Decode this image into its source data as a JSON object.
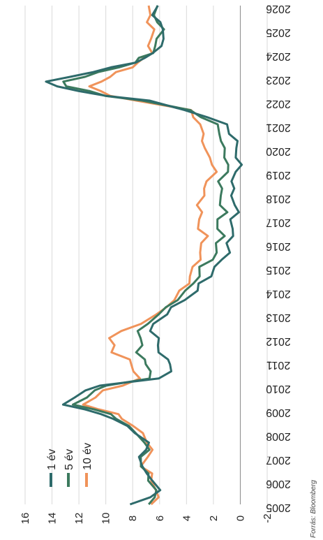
{
  "chart_data": {
    "type": "line",
    "orientation": "rotated-90",
    "title": "",
    "xlabel": "",
    "ylabel": "",
    "ylim": [
      -2,
      16
    ],
    "yticks": [
      "-2",
      "0",
      "2",
      "4",
      "6",
      "8",
      "10",
      "12",
      "14",
      "16"
    ],
    "xlim": [
      2005,
      2026
    ],
    "xticks": [
      "2005",
      "2006",
      "2007",
      "2008",
      "2009",
      "2010",
      "2011",
      "2012",
      "2013",
      "2014",
      "2015",
      "2016",
      "2017",
      "2018",
      "2019",
      "2020",
      "2021",
      "2022",
      "2023",
      "2024",
      "2025",
      "2026"
    ],
    "grid": true,
    "legend_position": "inside-lower-left",
    "source_note": "Forrás: Bloomberg",
    "series": [
      {
        "name": "1 év",
        "color": "#2e6b6b",
        "x": [
          2005.0,
          2005.3,
          2005.6,
          2006.0,
          2006.3,
          2006.6,
          2007.0,
          2007.3,
          2007.6,
          2008.0,
          2008.3,
          2008.6,
          2008.8,
          2009.0,
          2009.2,
          2009.5,
          2009.8,
          2010.0,
          2010.3,
          2010.6,
          2010.9,
          2011.1,
          2011.4,
          2011.7,
          2012.0,
          2012.3,
          2012.6,
          2013.0,
          2013.3,
          2013.6,
          2014.0,
          2014.3,
          2014.6,
          2015.0,
          2015.3,
          2015.6,
          2016.0,
          2016.3,
          2016.6,
          2017.0,
          2017.3,
          2017.6,
          2018.0,
          2018.3,
          2018.6,
          2019.0,
          2019.3,
          2019.6,
          2020.0,
          2020.3,
          2020.6,
          2021.0,
          2021.3,
          2021.6,
          2022.0,
          2022.2,
          2022.4,
          2022.6,
          2022.8,
          2023.0,
          2023.2,
          2023.4,
          2023.6,
          2023.8,
          2024.0,
          2024.3,
          2024.6,
          2025.0,
          2025.3,
          2025.6,
          2026.0
        ],
        "values": [
          8.2,
          6.5,
          6.2,
          6.4,
          6.9,
          7.5,
          7.3,
          7.1,
          6.9,
          7.6,
          8.6,
          9.4,
          10.2,
          11.8,
          13.0,
          12.3,
          11.7,
          10.2,
          6.2,
          5.2,
          5.0,
          5.6,
          6.0,
          6.0,
          6.3,
          6.5,
          6.5,
          5.6,
          4.9,
          4.3,
          3.2,
          2.9,
          2.4,
          1.8,
          1.3,
          1.0,
          0.8,
          0.6,
          0.7,
          0.5,
          0.3,
          0.4,
          0.5,
          0.7,
          0.5,
          0.3,
          0.1,
          0.1,
          0.4,
          0.3,
          0.6,
          1.2,
          2.4,
          4.0,
          7.0,
          9.8,
          12.0,
          13.8,
          14.2,
          12.8,
          11.0,
          9.4,
          8.0,
          7.0,
          6.4,
          6.1,
          5.5,
          5.8,
          6.1,
          6.3,
          6.3
        ]
      },
      {
        "name": "5 év",
        "color": "#3c7a5e",
        "x": [
          2005.0,
          2005.3,
          2005.6,
          2006.0,
          2006.3,
          2006.6,
          2007.0,
          2007.3,
          2007.6,
          2008.0,
          2008.3,
          2008.6,
          2008.8,
          2009.0,
          2009.2,
          2009.5,
          2009.8,
          2010.0,
          2010.3,
          2010.6,
          2010.9,
          2011.1,
          2011.4,
          2011.7,
          2012.0,
          2012.3,
          2012.6,
          2013.0,
          2013.3,
          2013.6,
          2014.0,
          2014.3,
          2014.6,
          2015.0,
          2015.3,
          2015.6,
          2016.0,
          2016.3,
          2016.6,
          2017.0,
          2017.3,
          2017.6,
          2018.0,
          2018.3,
          2018.6,
          2019.0,
          2019.3,
          2019.6,
          2020.0,
          2020.3,
          2020.6,
          2021.0,
          2021.3,
          2021.6,
          2022.0,
          2022.2,
          2022.4,
          2022.6,
          2022.8,
          2023.0,
          2023.2,
          2023.4,
          2023.6,
          2023.8,
          2024.0,
          2024.3,
          2024.6,
          2025.0,
          2025.3,
          2025.6,
          2026.0
        ],
        "values": [
          6.6,
          6.4,
          6.4,
          6.6,
          7.0,
          7.4,
          7.2,
          7.0,
          7.0,
          7.7,
          8.5,
          9.0,
          9.7,
          11.0,
          12.2,
          11.6,
          10.8,
          9.8,
          7.0,
          6.5,
          7.0,
          7.3,
          7.5,
          7.4,
          7.5,
          7.4,
          7.1,
          6.0,
          5.4,
          4.9,
          3.9,
          3.5,
          3.2,
          2.8,
          2.2,
          1.8,
          1.6,
          1.4,
          1.6,
          1.6,
          1.2,
          1.3,
          1.5,
          1.5,
          1.4,
          1.1,
          0.9,
          1.0,
          1.4,
          1.3,
          1.5,
          1.9,
          2.7,
          3.8,
          7.4,
          9.8,
          11.4,
          12.9,
          13.0,
          11.8,
          10.4,
          9.0,
          8.0,
          7.3,
          6.6,
          6.4,
          6.0,
          5.9,
          6.1,
          6.3,
          6.4
        ]
      },
      {
        "name": "10 év",
        "color": "#f0935a",
        "x": [
          2005.0,
          2005.3,
          2005.6,
          2006.0,
          2006.3,
          2006.6,
          2007.0,
          2007.3,
          2007.6,
          2008.0,
          2008.3,
          2008.6,
          2008.8,
          2009.0,
          2009.2,
          2009.5,
          2009.8,
          2010.0,
          2010.3,
          2010.6,
          2010.9,
          2011.1,
          2011.4,
          2011.7,
          2012.0,
          2012.3,
          2012.6,
          2013.0,
          2013.3,
          2013.6,
          2014.0,
          2014.3,
          2014.6,
          2015.0,
          2015.3,
          2015.6,
          2016.0,
          2016.3,
          2016.6,
          2017.0,
          2017.3,
          2017.6,
          2018.0,
          2018.3,
          2018.6,
          2019.0,
          2019.3,
          2019.6,
          2020.0,
          2020.3,
          2020.6,
          2021.0,
          2021.3,
          2021.6,
          2022.0,
          2022.2,
          2022.4,
          2022.6,
          2022.8,
          2023.0,
          2023.2,
          2023.4,
          2023.6,
          2023.8,
          2024.0,
          2024.3,
          2024.6,
          2025.0,
          2025.3,
          2025.6,
          2026.0
        ],
        "values": [
          6.4,
          6.3,
          6.2,
          6.5,
          6.8,
          7.2,
          6.9,
          6.7,
          6.7,
          7.4,
          8.0,
          8.6,
          9.3,
          10.4,
          11.6,
          11.0,
          10.0,
          8.8,
          7.6,
          7.7,
          8.3,
          8.2,
          9.4,
          9.6,
          9.6,
          8.8,
          7.6,
          6.0,
          5.6,
          5.0,
          4.3,
          4.0,
          3.7,
          3.4,
          3.2,
          2.8,
          2.9,
          2.6,
          2.9,
          3.2,
          2.9,
          3.0,
          2.9,
          2.6,
          2.4,
          2.0,
          1.9,
          2.3,
          2.8,
          2.6,
          2.9,
          3.0,
          3.3,
          3.9,
          7.6,
          9.6,
          10.6,
          11.0,
          10.4,
          9.8,
          9.0,
          8.2,
          7.6,
          7.0,
          6.8,
          6.7,
          6.6,
          6.6,
          6.7,
          6.8,
          6.9
        ]
      }
    ]
  }
}
